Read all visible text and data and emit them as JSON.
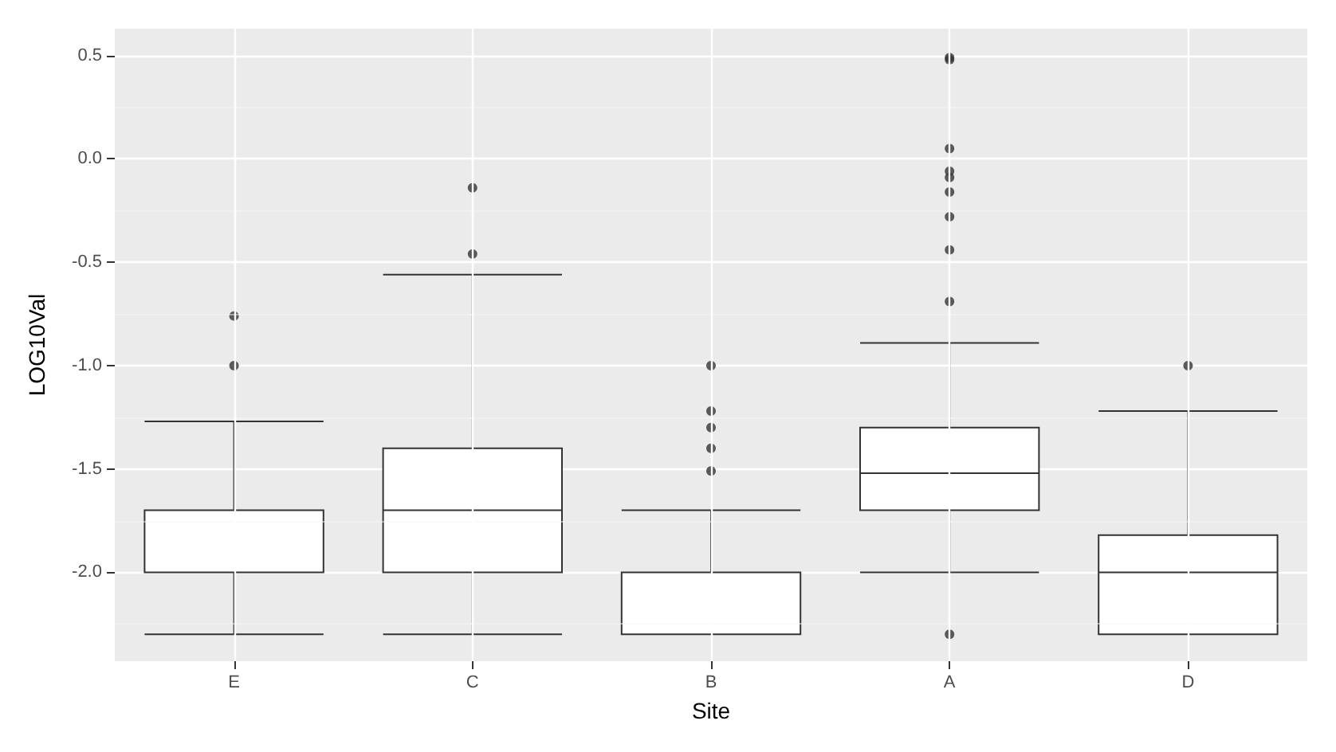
{
  "chart_data": {
    "type": "box",
    "xlabel": "Site",
    "ylabel": "LOG10Val",
    "categories": [
      "E",
      "C",
      "B",
      "A",
      "D"
    ],
    "boxes": [
      {
        "low": -2.3,
        "q1": -2.0,
        "median": -2.0,
        "q3": -1.7,
        "high": -1.27,
        "outliers": [
          -1.0,
          -0.76
        ]
      },
      {
        "low": -2.3,
        "q1": -2.0,
        "median": -1.7,
        "q3": -1.4,
        "high": -0.56,
        "outliers": [
          -0.46,
          -0.14
        ]
      },
      {
        "low": -2.3,
        "q1": -2.3,
        "median": -2.0,
        "q3": -2.0,
        "high": -1.7,
        "outliers": [
          -1.51,
          -1.4,
          -1.3,
          -1.22,
          -1.0
        ]
      },
      {
        "low": -2.0,
        "q1": -1.7,
        "median": -1.52,
        "q3": -1.3,
        "high": -0.89,
        "outliers": [
          -2.3,
          -0.69,
          -0.44,
          -0.28,
          -0.16,
          -0.09,
          -0.06,
          0.05,
          0.48,
          0.49
        ]
      },
      {
        "low": -2.3,
        "q1": -2.3,
        "median": -2.0,
        "q3": -1.82,
        "high": -1.22,
        "outliers": [
          -1.0
        ]
      }
    ],
    "ylim": [
      -2.43,
      0.63
    ],
    "yticks": [
      {
        "value": -2,
        "label": "-2.0"
      },
      -1.5,
      {
        "value": -1,
        "label": "-1.0"
      },
      -0.5,
      {
        "value": 0,
        "label": "0.0"
      },
      0.5
    ],
    "grid": true
  }
}
